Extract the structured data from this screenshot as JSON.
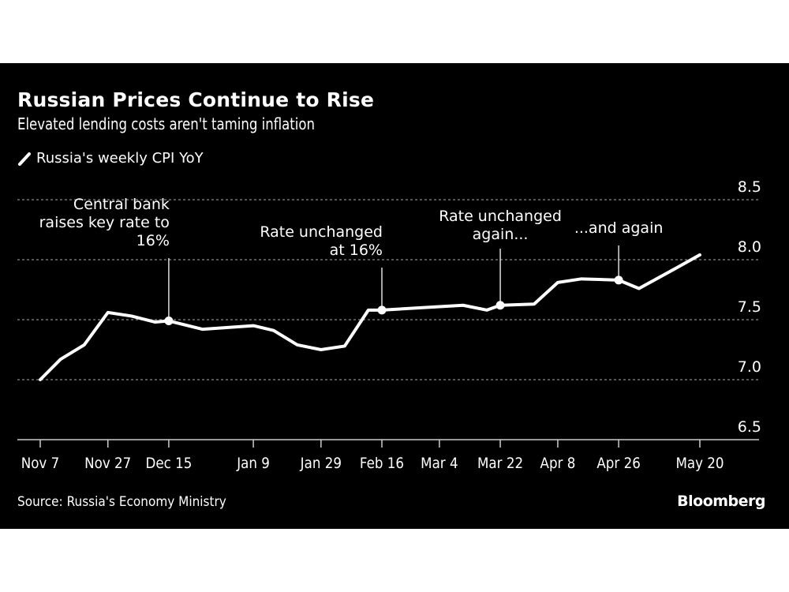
{
  "chart_data": {
    "type": "line",
    "title": "Russian Prices Continue to Rise",
    "subtitle": "Elevated lending costs aren't taming inflation",
    "source": "Source: Russia's Economy Ministry",
    "brand": "Bloomberg",
    "xlabel": "",
    "ylabel": "",
    "ylim": [
      6.5,
      8.5
    ],
    "yticks": [
      "6.5",
      "7.0",
      "7.5",
      "8.0",
      "8.5"
    ],
    "y_axis_side": "right",
    "grid": "horizontal dotted",
    "legend_placement": "top-left",
    "colors": {
      "background": "#000000",
      "line": "#ffffff",
      "text": "#ffffff",
      "grid": "#888888"
    },
    "xticks": [
      {
        "date": "2023-11-07",
        "label": "Nov 7"
      },
      {
        "date": "2023-11-27",
        "label": "Nov 27"
      },
      {
        "date": "2023-12-15",
        "label": "Dec 15"
      },
      {
        "date": "2024-01-09",
        "label": "Jan 9"
      },
      {
        "date": "2024-01-29",
        "label": "Jan 29"
      },
      {
        "date": "2024-02-16",
        "label": "Feb 16"
      },
      {
        "date": "2024-03-04",
        "label": "Mar 4"
      },
      {
        "date": "2024-03-22",
        "label": "Mar 22"
      },
      {
        "date": "2024-04-08",
        "label": "Apr 8"
      },
      {
        "date": "2024-04-26",
        "label": "Apr 26"
      },
      {
        "date": "2024-05-20",
        "label": "May 20"
      }
    ],
    "series": [
      {
        "name": "Russia's weekly CPI YoY",
        "x": [
          "2023-11-07",
          "2023-11-13",
          "2023-11-20",
          "2023-11-27",
          "2023-12-04",
          "2023-12-11",
          "2023-12-15",
          "2023-12-25",
          "2024-01-09",
          "2024-01-15",
          "2024-01-22",
          "2024-01-29",
          "2024-02-05",
          "2024-02-12",
          "2024-02-16",
          "2024-03-11",
          "2024-03-18",
          "2024-03-22",
          "2024-04-01",
          "2024-04-08",
          "2024-04-15",
          "2024-04-26",
          "2024-05-02",
          "2024-05-13",
          "2024-05-20"
        ],
        "y": [
          7.0,
          7.17,
          7.29,
          7.56,
          7.53,
          7.48,
          7.49,
          7.42,
          7.45,
          7.41,
          7.29,
          7.25,
          7.28,
          7.58,
          7.58,
          7.62,
          7.58,
          7.62,
          7.63,
          7.81,
          7.84,
          7.83,
          7.76,
          7.93,
          8.04
        ]
      }
    ],
    "annotations": [
      {
        "date": "2023-12-15",
        "lines": [
          "Central bank",
          "raises key rate to",
          "16%"
        ],
        "align": "right"
      },
      {
        "date": "2024-02-16",
        "lines": [
          "Rate unchanged",
          "at 16%"
        ],
        "align": "right"
      },
      {
        "date": "2024-03-22",
        "lines": [
          "Rate unchanged",
          "again..."
        ],
        "align": "center"
      },
      {
        "date": "2024-04-26",
        "lines": [
          "...and again"
        ],
        "align": "center"
      }
    ]
  }
}
